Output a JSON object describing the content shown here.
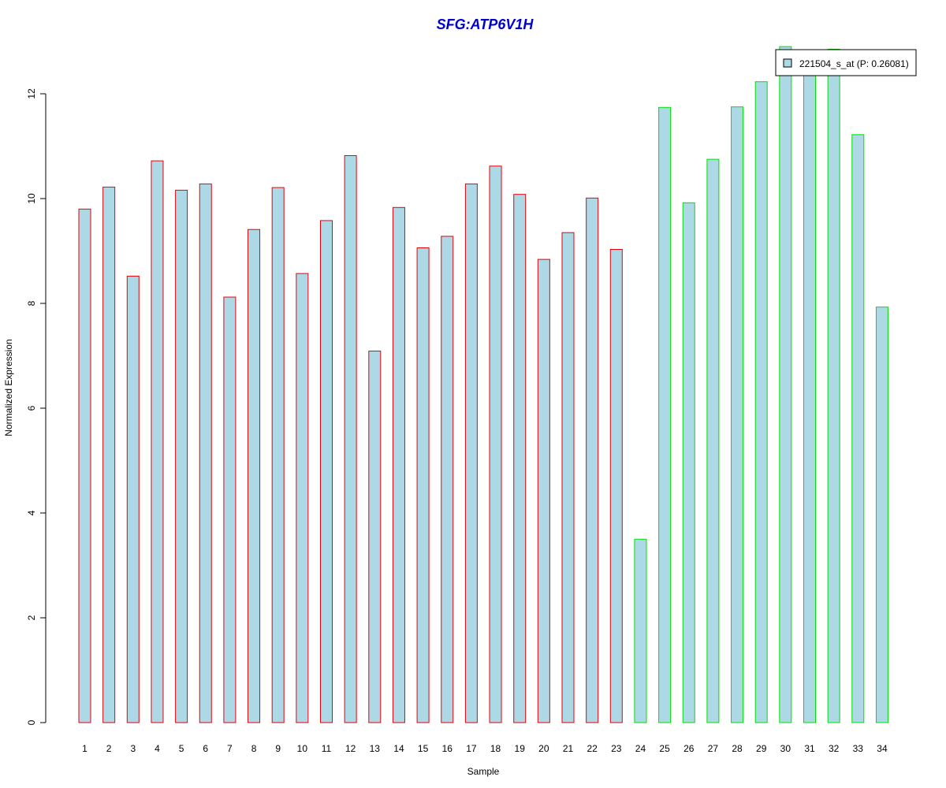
{
  "chart_data": {
    "type": "bar",
    "title": "SFG:ATP6V1H",
    "xlabel": "Sample",
    "ylabel": "Normalized Expression",
    "categories": [
      "1",
      "2",
      "3",
      "4",
      "5",
      "6",
      "7",
      "8",
      "9",
      "10",
      "11",
      "12",
      "13",
      "14",
      "15",
      "16",
      "17",
      "18",
      "19",
      "20",
      "21",
      "22",
      "23",
      "24",
      "25",
      "26",
      "27",
      "28",
      "29",
      "30",
      "31",
      "32",
      "33",
      "34"
    ],
    "series": [
      {
        "name": "221504_s_at (P: 0.26081)",
        "values": [
          9.8,
          10.22,
          8.52,
          10.72,
          10.16,
          10.28,
          8.12,
          9.41,
          10.21,
          8.57,
          9.58,
          10.82,
          7.09,
          9.83,
          9.06,
          9.28,
          10.28,
          10.62,
          10.08,
          8.84,
          9.35,
          10.01,
          9.03,
          3.5,
          11.74,
          9.92,
          10.75,
          11.75,
          12.23,
          12.9,
          12.83,
          12.85,
          11.22,
          7.93
        ]
      }
    ],
    "groups": [
      {
        "range": [
          1,
          23
        ],
        "border": "#e8000b"
      },
      {
        "range": [
          24,
          34
        ],
        "border": "#00e000"
      }
    ],
    "ylim": [
      0,
      13
    ],
    "yticks": [
      0,
      2,
      4,
      6,
      8,
      10,
      12
    ],
    "legend_position": "top-right",
    "colors": {
      "fill": "#add8e6",
      "title": "#0000cc"
    }
  }
}
